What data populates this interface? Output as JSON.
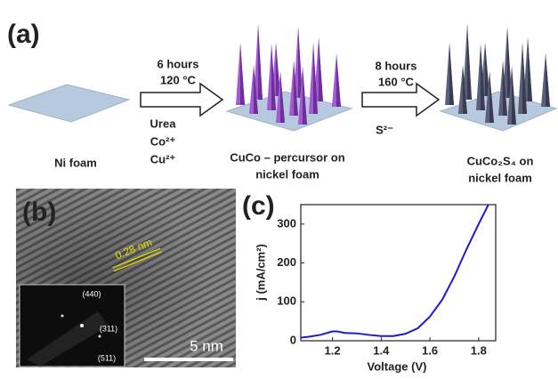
{
  "panel_a": {
    "label": "(a)",
    "ni_foam": "Ni foam",
    "step1": {
      "time": "6 hours",
      "temp": "120 °C",
      "reagents": [
        "Urea",
        "Co²⁺",
        "Cu²⁺"
      ]
    },
    "product1": [
      "CuCo – percursor on",
      "nickel foam"
    ],
    "step2": {
      "time": "8 hours",
      "temp": "160 °C",
      "reagent": "S²⁻"
    },
    "product2": [
      "CuCo₂S₄ on",
      "nickel foam"
    ]
  },
  "panel_b": {
    "label": "(b)",
    "lattice": "0.28 nm",
    "planes": [
      "(440)",
      "(311)",
      "(511)"
    ],
    "scale": "5 nm"
  },
  "chart_data": {
    "type": "line",
    "panel_label": "(c)",
    "x_label": "Voltage (V)",
    "y_label": "j (mA/cm²)",
    "x": [
      1.07,
      1.1,
      1.15,
      1.2,
      1.22,
      1.25,
      1.3,
      1.35,
      1.4,
      1.45,
      1.5,
      1.55,
      1.6,
      1.65,
      1.7,
      1.75,
      1.8,
      1.84
    ],
    "values": [
      8,
      10,
      15,
      24,
      24,
      20,
      19,
      15,
      12,
      12,
      18,
      32,
      62,
      105,
      165,
      235,
      300,
      350
    ],
    "color": "#1c1ccf",
    "xlim": [
      1.07,
      1.87
    ],
    "xticks": [
      1.2,
      1.4,
      1.6,
      1.8
    ],
    "ylim": [
      0,
      350
    ],
    "yticks": [
      0,
      100,
      200,
      300
    ]
  }
}
